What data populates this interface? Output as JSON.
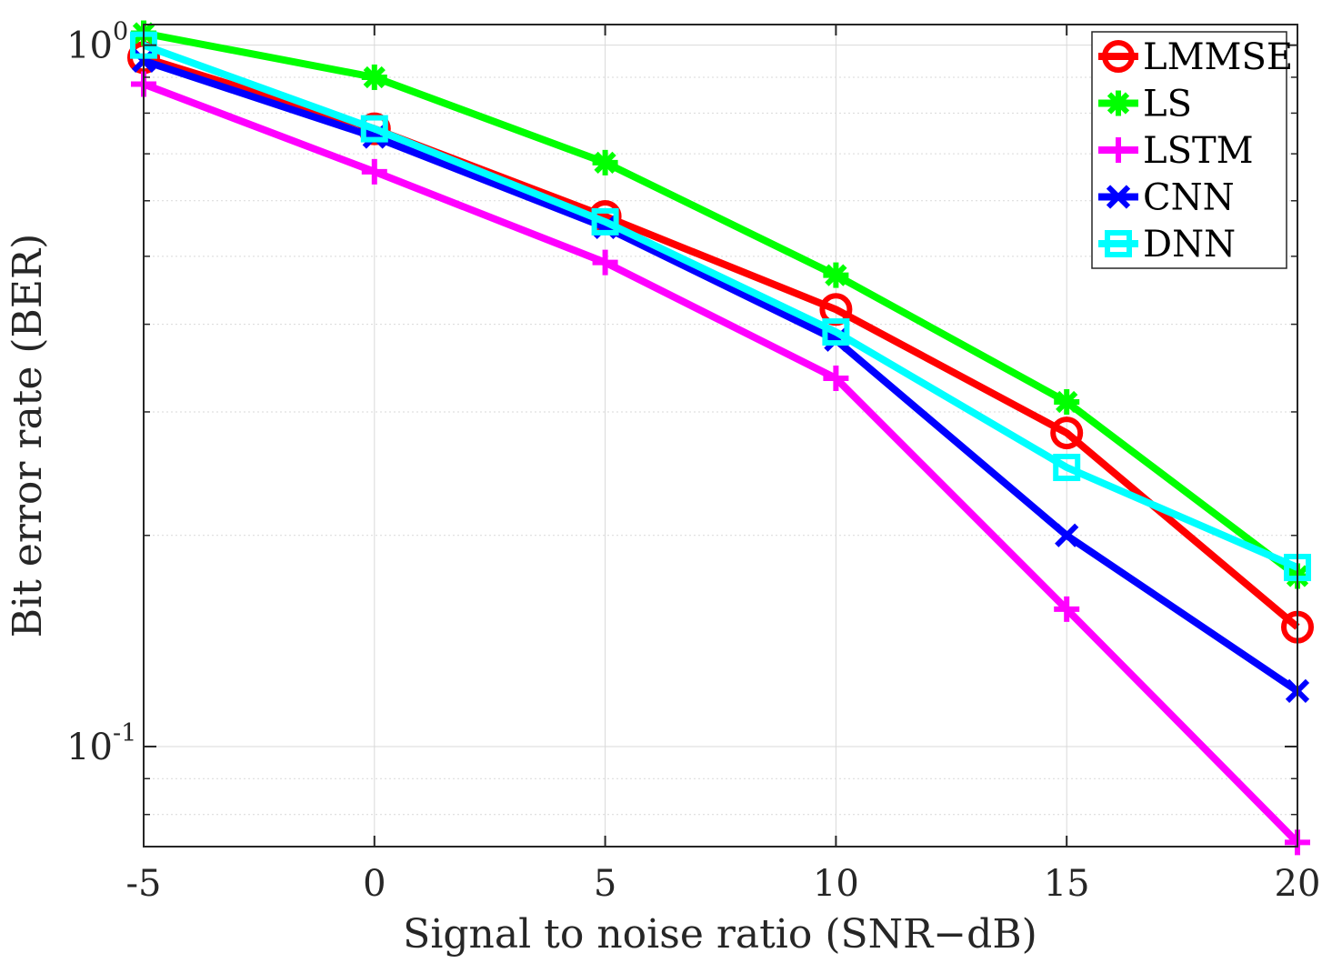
{
  "chart_data": {
    "type": "line",
    "xlabel": "Signal to noise ratio (SNR−dB)",
    "ylabel": "Bit error rate (BER)",
    "yscale": "log",
    "xlim": [
      -5,
      20
    ],
    "ylim": [
      0.072,
      1.07
    ],
    "xticks": [
      -5,
      0,
      5,
      10,
      15,
      20
    ],
    "xtick_labels": [
      "-5",
      "0",
      "5",
      "10",
      "15",
      "20"
    ],
    "yticks": [
      {
        "value": 0.1,
        "base": "10",
        "exp": "-1"
      },
      {
        "value": 1,
        "base": "10",
        "exp": "0"
      }
    ],
    "grid": true,
    "legend_position": "top-right",
    "x": [
      -5,
      0,
      5,
      10,
      15,
      20
    ],
    "series": [
      {
        "name": "LMMSE",
        "color": "#ff0000",
        "marker": "circle",
        "values": [
          0.96,
          0.76,
          0.57,
          0.42,
          0.28,
          0.148
        ]
      },
      {
        "name": "LS",
        "color": "#00ff00",
        "marker": "asterisk",
        "values": [
          1.04,
          0.9,
          0.68,
          0.47,
          0.31,
          0.175
        ]
      },
      {
        "name": "LSTM",
        "color": "#ff00ff",
        "marker": "plus",
        "values": [
          0.88,
          0.66,
          0.49,
          0.335,
          0.157,
          0.073
        ]
      },
      {
        "name": "CNN",
        "color": "#0000ff",
        "marker": "x",
        "values": [
          0.95,
          0.74,
          0.55,
          0.38,
          0.2,
          0.12
        ]
      },
      {
        "name": "DNN",
        "color": "#00ffff",
        "marker": "square",
        "values": [
          1.0,
          0.76,
          0.56,
          0.39,
          0.25,
          0.18
        ]
      }
    ]
  }
}
